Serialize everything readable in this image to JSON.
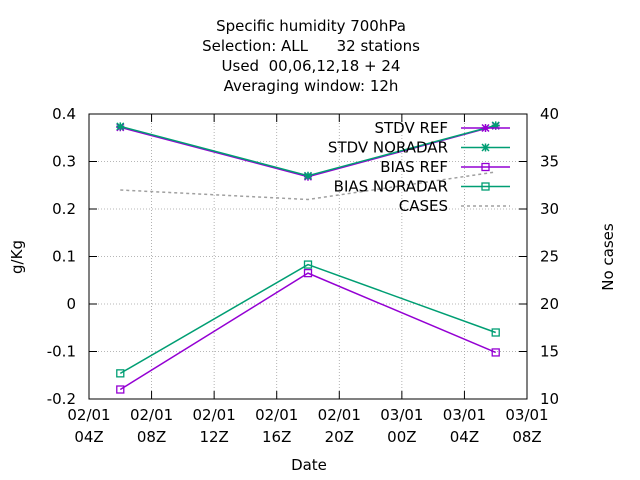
{
  "chart_data": {
    "type": "line",
    "title_lines": [
      "Specific humidity 700hPa",
      "Selection: ALL      32 stations",
      "Used  00,06,12,18 + 24",
      "Averaging window: 12h"
    ],
    "xlabel": "Date",
    "ylabel": "g/Kg",
    "y2label": "No cases",
    "ylim": [
      -0.2,
      0.4
    ],
    "y2lim": [
      10,
      40
    ],
    "grid": true,
    "legend_position": "top-right",
    "x_ticks": [
      [
        "02/01",
        "04Z"
      ],
      [
        "02/01",
        "08Z"
      ],
      [
        "02/01",
        "12Z"
      ],
      [
        "02/01",
        "16Z"
      ],
      [
        "02/01",
        "20Z"
      ],
      [
        "03/01",
        "00Z"
      ],
      [
        "03/01",
        "04Z"
      ],
      [
        "03/01",
        "08Z"
      ]
    ],
    "y_ticks": [
      "-0.2",
      "-0.1",
      "0",
      "0.1",
      "0.2",
      "0.3",
      "0.4"
    ],
    "y2_ticks": [
      "10",
      "15",
      "20",
      "25",
      "30",
      "35",
      "40"
    ],
    "x": [
      "02/01 06Z",
      "02/01 18Z",
      "03/01 06Z"
    ],
    "series": [
      {
        "name": "STDV REF",
        "axis": "y1",
        "marker": "star",
        "style": "solid",
        "color": "#9400d3",
        "values": [
          0.372,
          0.268,
          0.375
        ]
      },
      {
        "name": "STDV NORADAR",
        "axis": "y1",
        "marker": "star",
        "style": "solid",
        "color": "#009e73",
        "values": [
          0.374,
          0.27,
          0.376
        ]
      },
      {
        "name": "BIAS REF",
        "axis": "y1",
        "marker": "square",
        "style": "solid",
        "color": "#9400d3",
        "values": [
          -0.18,
          0.065,
          -0.102
        ]
      },
      {
        "name": "BIAS NORADAR",
        "axis": "y1",
        "marker": "square",
        "style": "solid",
        "color": "#009e73",
        "values": [
          -0.146,
          0.083,
          -0.06
        ]
      },
      {
        "name": "CASES",
        "axis": "y2",
        "marker": "none",
        "style": "dashed",
        "color": "#a0a0a0",
        "values": [
          32.0,
          31.0,
          33.9
        ]
      }
    ]
  }
}
